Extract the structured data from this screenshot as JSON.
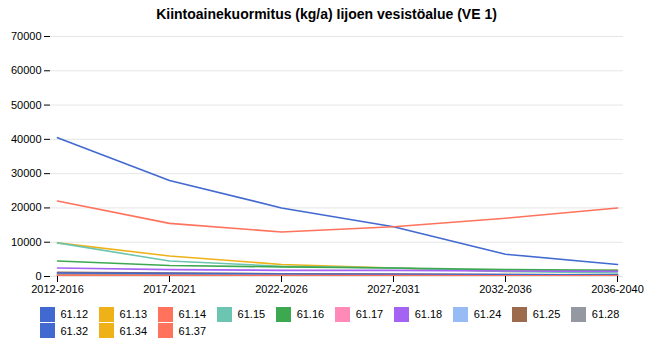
{
  "chart_data": {
    "type": "line",
    "title": "Kiintoainekuormitus (kg/a) Iijoen vesistöalue (VE 1)",
    "categories": [
      "2012-2016",
      "2017-2021",
      "2022-2026",
      "2027-2031",
      "2032-2036",
      "2036-2040"
    ],
    "series": [
      {
        "name": "61.12",
        "values": [
          40500,
          28000,
          20000,
          14500,
          6500,
          3500
        ]
      },
      {
        "name": "61.13",
        "values": [
          9800,
          6000,
          3500,
          2500,
          1500,
          1800
        ]
      },
      {
        "name": "61.14",
        "values": [
          22000,
          15500,
          13000,
          14500,
          17000,
          20000
        ]
      },
      {
        "name": "61.15",
        "values": [
          9800,
          4500,
          3000,
          2500,
          1500,
          1000
        ]
      },
      {
        "name": "61.16",
        "values": [
          4500,
          3200,
          2800,
          2500,
          2000,
          1800
        ]
      },
      {
        "name": "61.17",
        "values": [
          500,
          500,
          400,
          300,
          200,
          200
        ]
      },
      {
        "name": "61.18",
        "values": [
          2500,
          2000,
          1800,
          1800,
          1600,
          1500
        ]
      },
      {
        "name": "61.24",
        "values": [
          800,
          700,
          600,
          500,
          400,
          350
        ]
      },
      {
        "name": "61.25",
        "values": [
          1200,
          1000,
          800,
          700,
          600,
          500
        ]
      },
      {
        "name": "61.28",
        "values": [
          600,
          500,
          400,
          350,
          300,
          250
        ]
      },
      {
        "name": "61.32",
        "values": [
          1000,
          900,
          750,
          650,
          550,
          450
        ]
      },
      {
        "name": "61.34",
        "values": [
          250,
          220,
          180,
          160,
          140,
          130
        ]
      },
      {
        "name": "61.37",
        "values": [
          350,
          300,
          280,
          260,
          240,
          220
        ]
      }
    ],
    "ylim": [
      0,
      70000
    ],
    "yticks": [
      0,
      10000,
      20000,
      30000,
      40000,
      50000,
      60000,
      70000
    ],
    "grid": true,
    "legend": "bottom"
  }
}
